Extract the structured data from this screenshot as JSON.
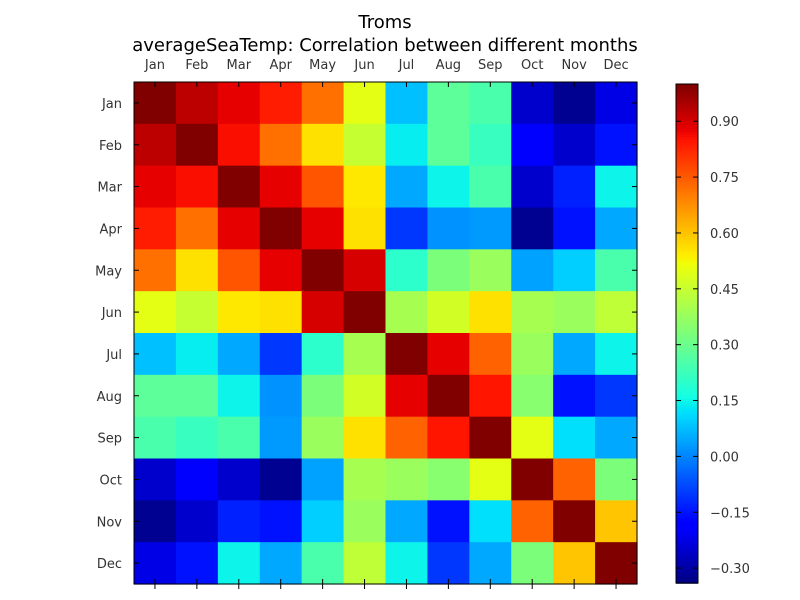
{
  "chart_data": {
    "type": "heatmap",
    "title": "Troms",
    "subtitle": "averageSeaTemp: Correlation between different months",
    "xlabel": "",
    "ylabel": "",
    "x_categories": [
      "Jan",
      "Feb",
      "Mar",
      "Apr",
      "May",
      "Jun",
      "Jul",
      "Aug",
      "Sep",
      "Oct",
      "Nov",
      "Dec"
    ],
    "y_categories": [
      "Jan",
      "Feb",
      "Mar",
      "Apr",
      "May",
      "Jun",
      "Jul",
      "Aug",
      "Sep",
      "Oct",
      "Nov",
      "Dec"
    ],
    "x_tick_position": "top",
    "colormap": "jet",
    "vmin": -0.34,
    "vmax": 1.0,
    "colorbar_ticks": [
      -0.3,
      -0.15,
      0.0,
      0.15,
      0.3,
      0.45,
      0.6,
      0.75,
      0.9
    ],
    "colorbar_tick_labels": [
      "−0.30",
      "−0.15",
      "0.00",
      "0.15",
      "0.30",
      "0.45",
      "0.60",
      "0.75",
      "0.90"
    ],
    "grid": false,
    "values": [
      [
        1.0,
        0.93,
        0.88,
        0.84,
        0.72,
        0.5,
        0.08,
        0.28,
        0.25,
        -0.25,
        -0.32,
        -0.22
      ],
      [
        0.93,
        1.0,
        0.86,
        0.72,
        0.56,
        0.45,
        0.14,
        0.28,
        0.22,
        -0.18,
        -0.25,
        -0.15
      ],
      [
        0.88,
        0.86,
        1.0,
        0.88,
        0.76,
        0.55,
        0.05,
        0.15,
        0.25,
        -0.25,
        -0.13,
        0.15
      ],
      [
        0.84,
        0.72,
        0.88,
        1.0,
        0.88,
        0.56,
        -0.1,
        0.02,
        0.03,
        -0.32,
        -0.15,
        0.05
      ],
      [
        0.72,
        0.56,
        0.76,
        0.88,
        1.0,
        0.9,
        0.2,
        0.33,
        0.38,
        0.04,
        0.1,
        0.25
      ],
      [
        0.5,
        0.45,
        0.55,
        0.56,
        0.9,
        1.0,
        0.4,
        0.47,
        0.56,
        0.4,
        0.38,
        0.44
      ],
      [
        0.08,
        0.14,
        0.05,
        -0.1,
        0.2,
        0.4,
        1.0,
        0.88,
        0.74,
        0.38,
        0.05,
        0.15
      ],
      [
        0.28,
        0.28,
        0.15,
        0.02,
        0.33,
        0.47,
        0.88,
        1.0,
        0.85,
        0.35,
        -0.15,
        -0.1
      ],
      [
        0.25,
        0.22,
        0.25,
        0.03,
        0.38,
        0.56,
        0.74,
        0.85,
        1.0,
        0.5,
        0.12,
        0.05
      ],
      [
        -0.25,
        -0.18,
        -0.25,
        -0.32,
        0.04,
        0.4,
        0.38,
        0.35,
        0.5,
        1.0,
        0.74,
        0.33
      ],
      [
        -0.32,
        -0.25,
        -0.13,
        -0.15,
        0.1,
        0.38,
        0.05,
        -0.15,
        0.12,
        0.74,
        1.0,
        0.6
      ],
      [
        -0.22,
        -0.15,
        0.15,
        0.05,
        0.25,
        0.44,
        0.15,
        -0.1,
        0.05,
        0.33,
        0.6,
        1.0
      ]
    ]
  }
}
